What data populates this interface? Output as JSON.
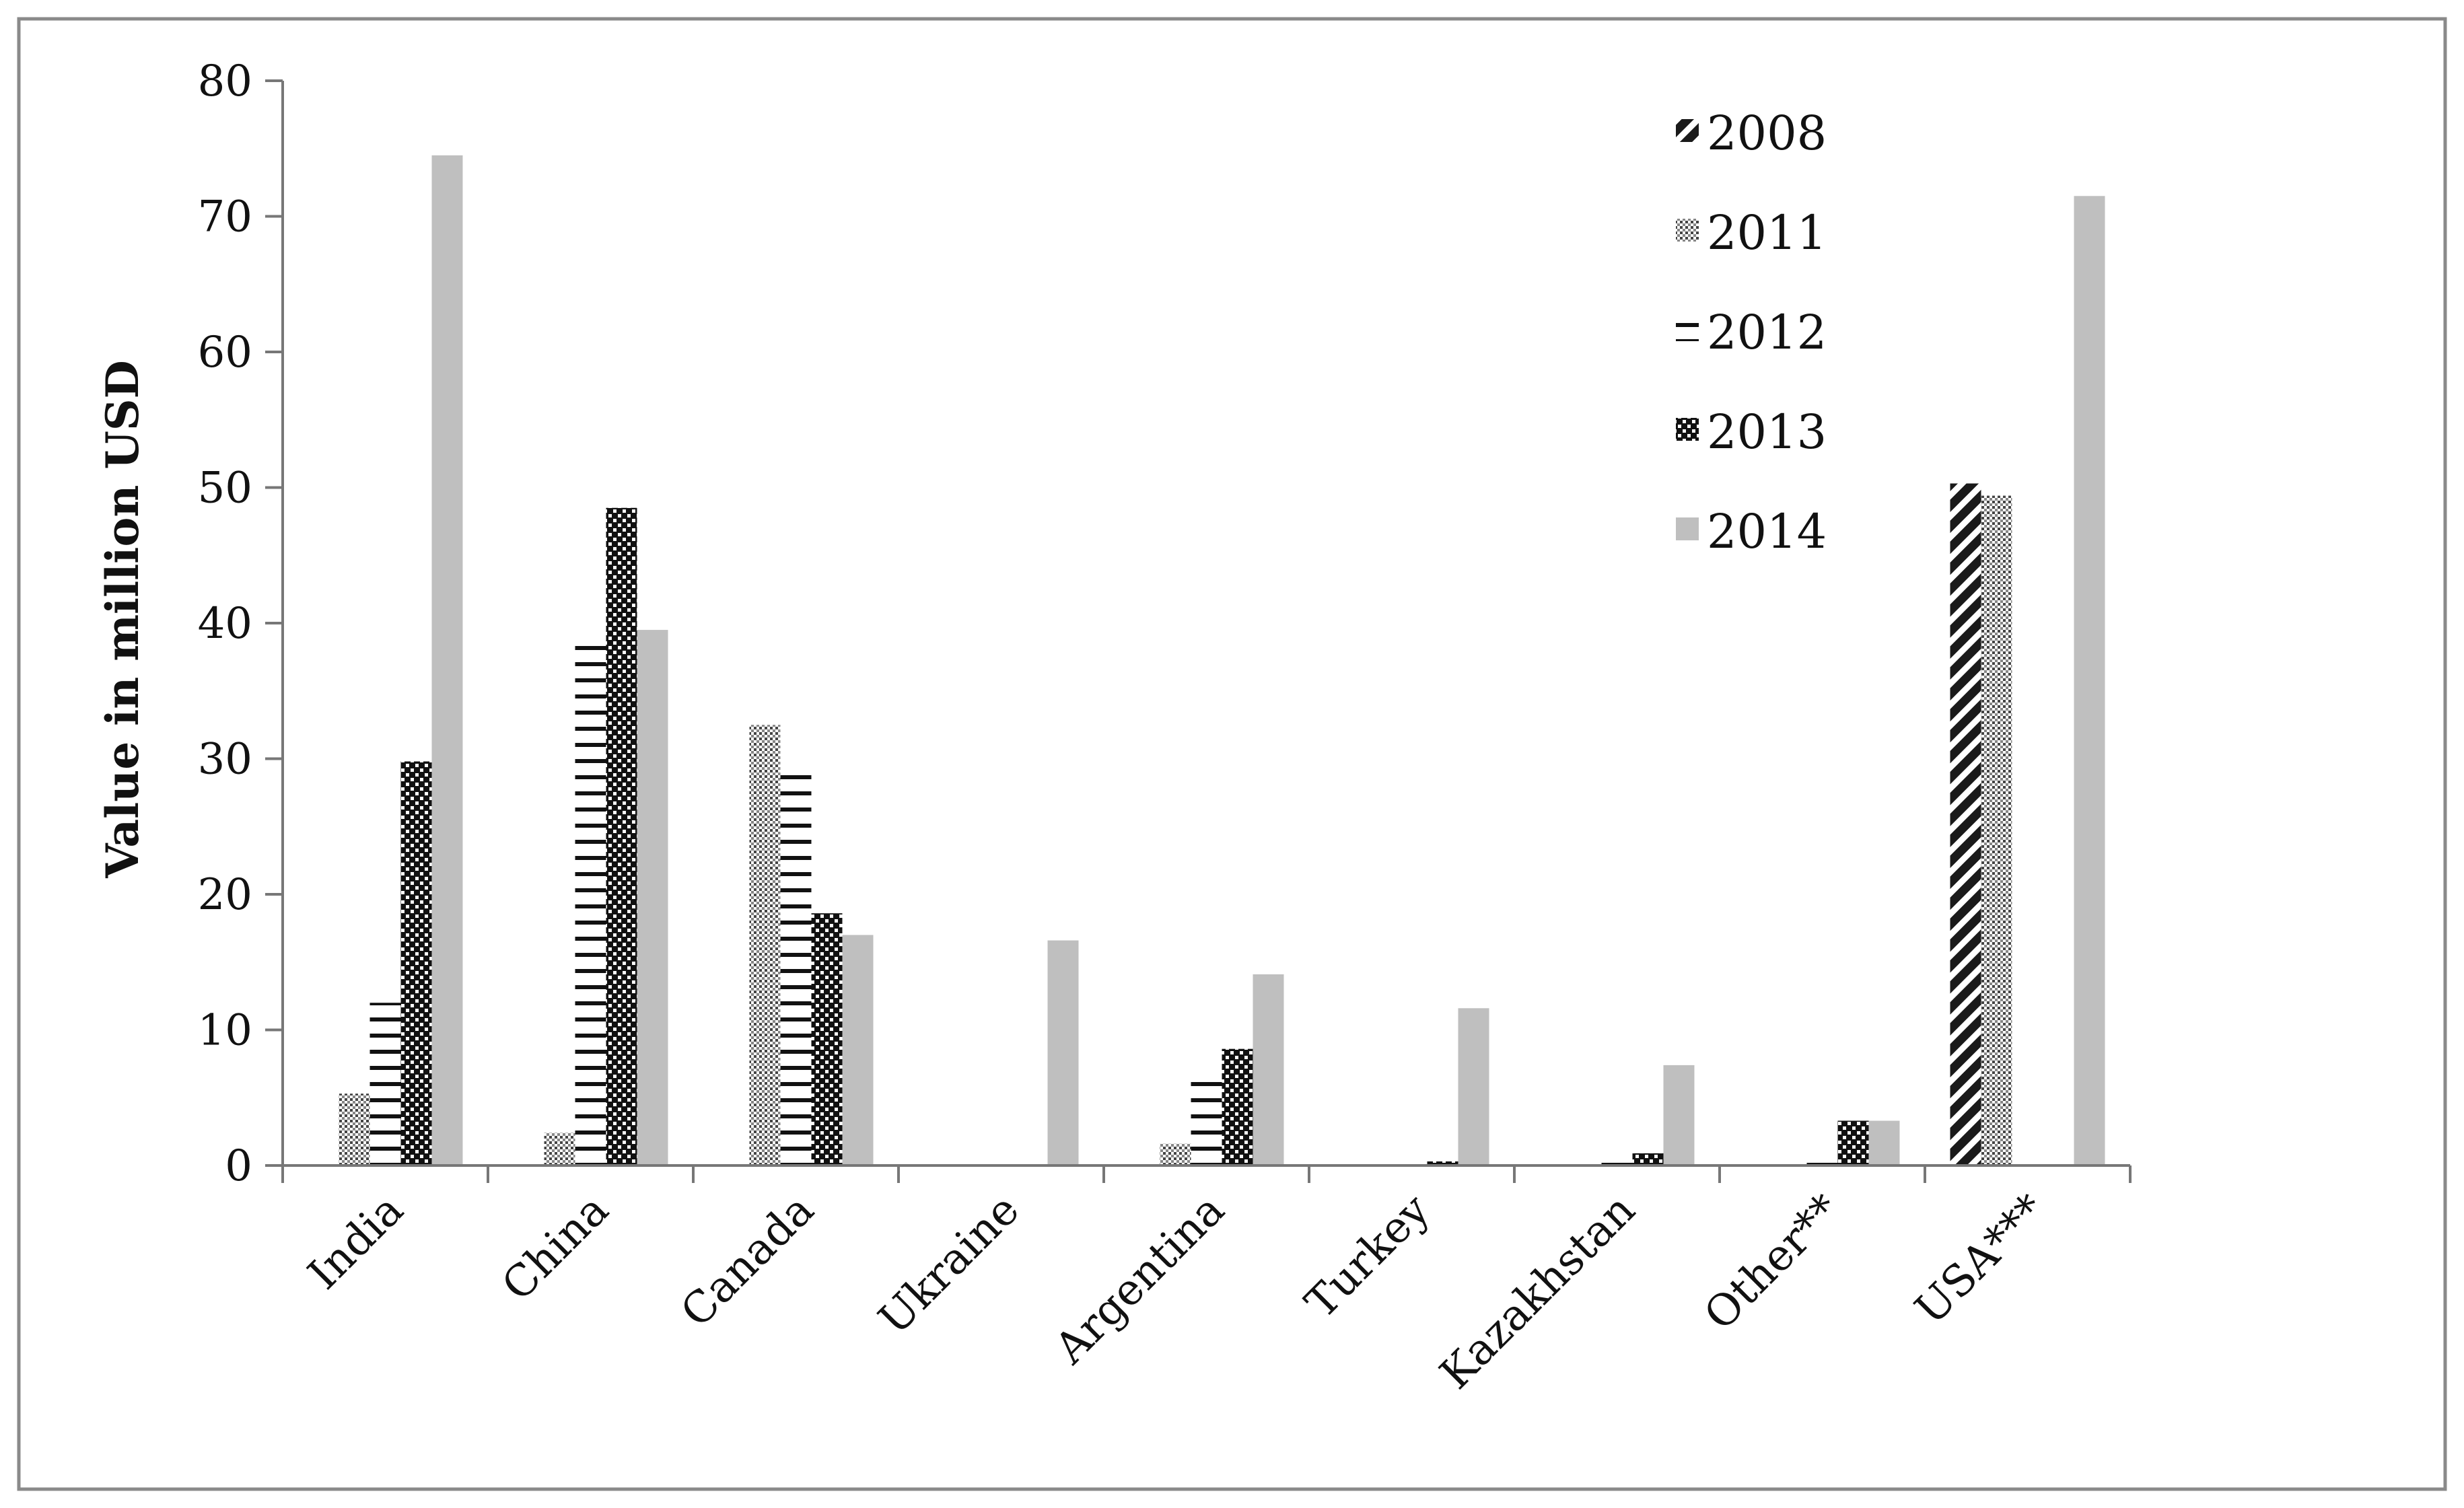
{
  "chart_data": {
    "type": "bar",
    "ylabel": "Value in million USD",
    "xlabel": "",
    "ylim": [
      0,
      80
    ],
    "yticks": [
      0,
      10,
      20,
      30,
      40,
      50,
      60,
      70,
      80
    ],
    "grid": false,
    "legend_position": "top-right",
    "categories": [
      "India",
      "China",
      "Canada",
      "Ukraine",
      "Argentina",
      "Turkey",
      "Kazakhstan",
      "Other**",
      "USA***"
    ],
    "series": [
      {
        "name": "2008",
        "pattern": "diagonal-hatch",
        "color": "#1a1a1a",
        "values": [
          0,
          0,
          0,
          0,
          0,
          0,
          0,
          0,
          50.3
        ]
      },
      {
        "name": "2011",
        "pattern": "dots",
        "color": "#555555",
        "values": [
          5.3,
          2.4,
          32.5,
          0,
          1.6,
          0,
          0,
          0,
          49.4
        ]
      },
      {
        "name": "2012",
        "pattern": "horizontal-lines",
        "color": "#111111",
        "values": [
          12.0,
          39.0,
          29.2,
          0,
          7.0,
          0,
          0.4,
          0.6,
          0
        ]
      },
      {
        "name": "2013",
        "pattern": "checker",
        "color": "#111111",
        "values": [
          29.8,
          48.5,
          18.6,
          0,
          8.6,
          0.3,
          0.9,
          3.3,
          0
        ]
      },
      {
        "name": "2014",
        "pattern": "solid",
        "color": "#bfbfbf",
        "values": [
          74.5,
          39.5,
          17.0,
          16.6,
          14.1,
          11.6,
          7.4,
          3.3,
          71.5
        ]
      }
    ]
  }
}
